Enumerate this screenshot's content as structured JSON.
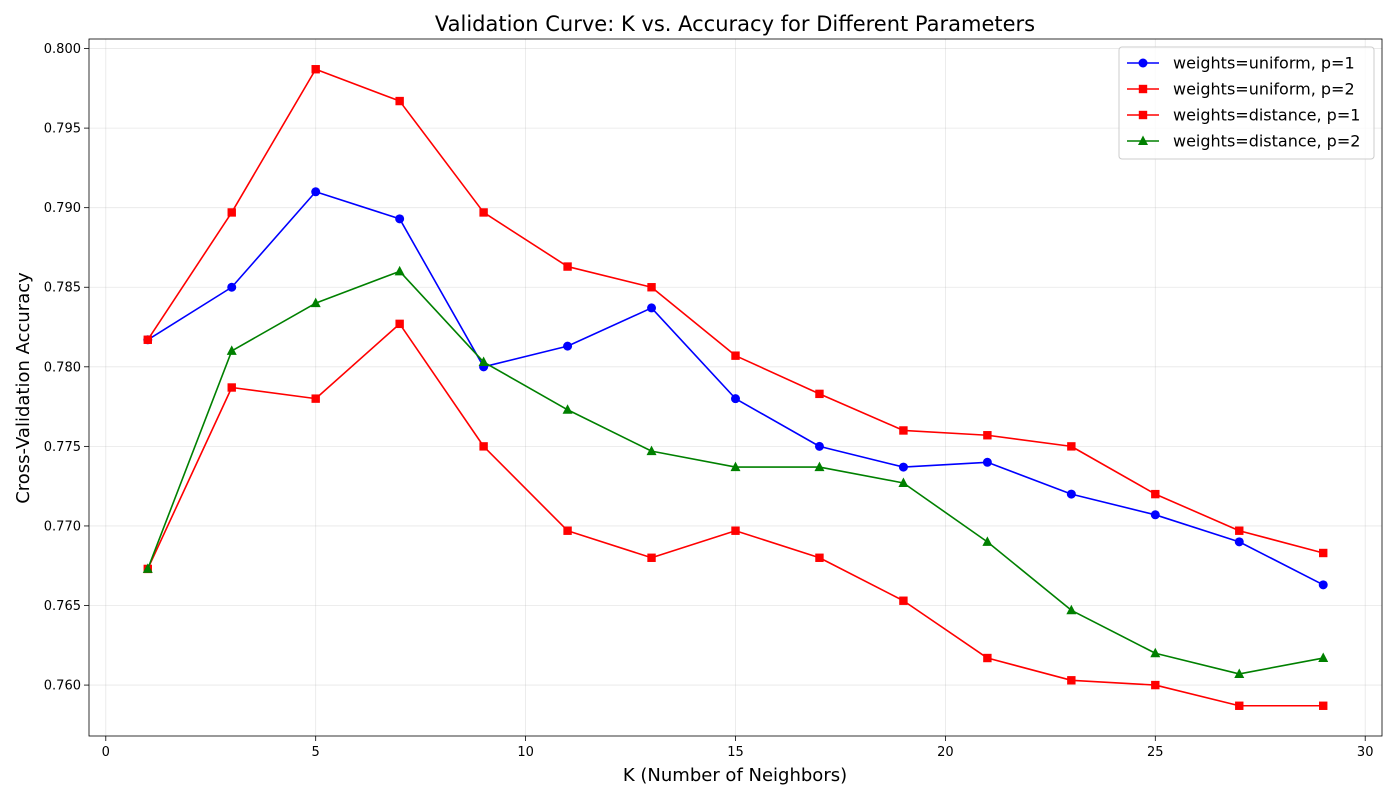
{
  "chart_data": {
    "type": "line",
    "title": "Validation Curve: K vs. Accuracy for Different Parameters",
    "xlabel": "K (Number of Neighbors)",
    "ylabel": "Cross-Validation Accuracy",
    "xlim": [
      -0.4,
      30.4
    ],
    "ylim": [
      0.7568,
      0.8006
    ],
    "x_ticks": [
      0,
      5,
      10,
      15,
      20,
      25,
      30
    ],
    "y_ticks": [
      0.76,
      0.765,
      0.77,
      0.775,
      0.78,
      0.785,
      0.79,
      0.795,
      0.8
    ],
    "grid": true,
    "legend_position": "top-right",
    "x": [
      1,
      3,
      5,
      7,
      9,
      11,
      13,
      15,
      17,
      19,
      21,
      23,
      25,
      27,
      29
    ],
    "series": [
      {
        "name": "weights=uniform, p=1",
        "color": "#0000ff",
        "marker": "circle",
        "values": [
          0.7817,
          0.785,
          0.791,
          0.7893,
          0.78,
          0.7813,
          0.7837,
          0.778,
          0.775,
          0.7737,
          0.774,
          0.772,
          0.7707,
          0.769,
          0.7663
        ]
      },
      {
        "name": "weights=uniform, p=2",
        "color": "#ff0000",
        "marker": "square",
        "values": [
          0.7817,
          0.7897,
          0.7987,
          0.7967,
          0.7897,
          0.7863,
          0.785,
          0.7807,
          0.7783,
          0.776,
          0.7757,
          0.775,
          0.772,
          0.7697,
          0.7683
        ]
      },
      {
        "name": "weights=distance, p=1",
        "color": "#ff0000",
        "marker": "square",
        "values": [
          0.7673,
          0.7787,
          0.778,
          0.7827,
          0.775,
          0.7697,
          0.768,
          0.7697,
          0.768,
          0.7653,
          0.7617,
          0.7603,
          0.76,
          0.7587,
          0.7587
        ]
      },
      {
        "name": "weights=distance, p=2",
        "color": "#008000",
        "marker": "triangle",
        "values": [
          0.7673,
          0.781,
          0.784,
          0.786,
          0.7803,
          0.7773,
          0.7747,
          0.7737,
          0.7737,
          0.7727,
          0.769,
          0.7647,
          0.762,
          0.7607,
          0.7617
        ]
      }
    ]
  }
}
